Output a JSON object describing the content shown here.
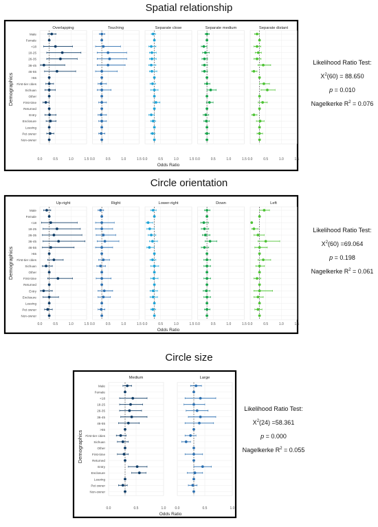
{
  "chart_data": [
    {
      "id": "spatial",
      "type": "scatter",
      "title": "Spatial relationship",
      "ylabel": "Demographics",
      "xlabel": "Odds Ratio",
      "xticks": [
        "0.0",
        "0.5",
        "1.0",
        "1.5"
      ],
      "xlim": [
        0,
        1.5
      ],
      "reference_line": 0.3,
      "categories": [
        "Male",
        "Female",
        "<18",
        "18-25",
        "26-35",
        "36-45",
        "46-55",
        ">55",
        "First-tier cities",
        "Sichuan",
        "Other",
        "First-time",
        "Returned",
        "Entry",
        "Enclosure",
        "Leaving",
        "Pet owner",
        "Non-owner"
      ],
      "stats": {
        "heading": "Likelihood Ratio Test:",
        "chi": "X",
        "chi_sup": "2",
        "chi_rest": "(60) = 88.650",
        "p_label": "p",
        "p_rest": " = 0.010",
        "r2_label": "Nagelkerke R",
        "r2_sup": "2",
        "r2_rest": " = 0.076"
      },
      "series": [
        {
          "name": "Overlapping",
          "color": "#0d3b66",
          "values": [
            0.38,
            0.3,
            0.5,
            0.72,
            0.66,
            0.13,
            0.55,
            0.3,
            0.3,
            0.3,
            0.3,
            0.19,
            0.3,
            0.31,
            0.34,
            0.3,
            0.33,
            0.3
          ],
          "lower": [
            0.26,
            0.3,
            0.12,
            0.22,
            0.22,
            0.02,
            0.15,
            0.3,
            0.19,
            0.16,
            0.3,
            0.1,
            0.3,
            0.16,
            0.2,
            0.3,
            0.22,
            0.3
          ],
          "upper": [
            0.52,
            0.3,
            1.05,
            1.32,
            1.2,
            0.8,
            1.15,
            0.3,
            0.44,
            0.5,
            0.3,
            0.3,
            0.3,
            0.52,
            0.52,
            0.3,
            0.45,
            0.3
          ]
        },
        {
          "name": "Touching",
          "color": "#2b6fb0",
          "values": [
            0.3,
            0.3,
            0.35,
            0.5,
            0.55,
            0.5,
            0.3,
            0.3,
            0.28,
            0.3,
            0.3,
            0.3,
            0.3,
            0.28,
            0.3,
            0.3,
            0.28,
            0.3
          ],
          "lower": [
            0.22,
            0.3,
            0.1,
            0.15,
            0.15,
            0.15,
            0.1,
            0.3,
            0.18,
            0.15,
            0.3,
            0.2,
            0.3,
            0.18,
            0.2,
            0.3,
            0.2,
            0.3
          ],
          "upper": [
            0.4,
            0.3,
            0.9,
            1.1,
            1.1,
            1.05,
            0.8,
            0.3,
            0.45,
            0.6,
            0.3,
            0.45,
            0.3,
            0.45,
            0.45,
            0.3,
            0.4,
            0.3
          ]
        },
        {
          "name": "Separate close",
          "color": "#1fa3d6",
          "values": [
            0.26,
            0.3,
            0.2,
            0.22,
            0.22,
            0.2,
            0.22,
            0.3,
            0.24,
            0.3,
            0.3,
            0.35,
            0.3,
            0.2,
            0.26,
            0.3,
            0.24,
            0.3
          ],
          "lower": [
            0.2,
            0.3,
            0.12,
            0.14,
            0.14,
            0.12,
            0.14,
            0.3,
            0.16,
            0.18,
            0.3,
            0.26,
            0.3,
            0.12,
            0.18,
            0.3,
            0.18,
            0.3
          ],
          "upper": [
            0.34,
            0.3,
            0.35,
            0.36,
            0.36,
            0.35,
            0.38,
            0.3,
            0.34,
            0.42,
            0.3,
            0.48,
            0.3,
            0.3,
            0.34,
            0.3,
            0.32,
            0.3
          ]
        },
        {
          "name": "Separate medium",
          "color": "#17a34a",
          "values": [
            0.3,
            0.3,
            0.2,
            0.25,
            0.22,
            0.22,
            0.22,
            0.3,
            0.3,
            0.42,
            0.3,
            0.38,
            0.3,
            0.26,
            0.28,
            0.3,
            0.3,
            0.3
          ],
          "lower": [
            0.24,
            0.3,
            0.12,
            0.16,
            0.14,
            0.14,
            0.14,
            0.3,
            0.22,
            0.3,
            0.3,
            0.28,
            0.3,
            0.18,
            0.2,
            0.3,
            0.24,
            0.3
          ],
          "upper": [
            0.38,
            0.3,
            0.3,
            0.38,
            0.32,
            0.32,
            0.32,
            0.3,
            0.4,
            0.6,
            0.3,
            0.5,
            0.3,
            0.36,
            0.38,
            0.3,
            0.38,
            0.3
          ]
        },
        {
          "name": "Separate distant",
          "color": "#4cc232",
          "values": [
            0.22,
            0.3,
            0.22,
            0.26,
            0.22,
            0.42,
            0.12,
            0.3,
            0.44,
            0.55,
            0.3,
            0.4,
            0.3,
            0.12,
            0.32,
            0.3,
            0.3,
            0.3
          ],
          "lower": [
            0.14,
            0.3,
            0.12,
            0.16,
            0.12,
            0.25,
            0.05,
            0.3,
            0.3,
            0.35,
            0.3,
            0.26,
            0.3,
            0.05,
            0.2,
            0.3,
            0.22,
            0.3
          ],
          "upper": [
            0.3,
            0.3,
            0.34,
            0.36,
            0.35,
            0.66,
            0.22,
            0.3,
            0.62,
            0.8,
            0.3,
            0.55,
            0.3,
            0.22,
            0.45,
            0.3,
            0.4,
            0.3
          ]
        }
      ]
    },
    {
      "id": "orientation",
      "type": "scatter",
      "title": "Circle orientation",
      "ylabel": "Demographics",
      "xlabel": "Odds Ratio",
      "xticks": [
        "0.0",
        "0.5",
        "1.0",
        "1.5"
      ],
      "xlim": [
        0,
        1.5
      ],
      "reference_line": 0.3,
      "categories": [
        "Male",
        "Female",
        "<18",
        "18-25",
        "26-35",
        "36-45",
        "46-55",
        ">55",
        "First-tier cities",
        "Sichuan",
        "Other",
        "First-time",
        "Returned",
        "Entry",
        "Enclosure",
        "Leaving",
        "Pet owner",
        "Non-owner"
      ],
      "stats": {
        "heading": "Likelihood Ratio Test:",
        "chi": "X",
        "chi_sup": "2",
        "chi_rest": "(60) =69.064",
        "p_label": "p",
        "p_rest": " = 0.198",
        "r2_label": "Nagelkerke R",
        "r2_sup": "2",
        "r2_rest": " = 0.061"
      },
      "series": [
        {
          "name": "Up-right",
          "color": "#0d3b66",
          "values": [
            0.22,
            0.3,
            0.35,
            0.55,
            0.45,
            0.6,
            0.35,
            0.3,
            0.45,
            0.2,
            0.3,
            0.58,
            0.3,
            0.12,
            0.3,
            0.3,
            0.25,
            0.3
          ],
          "lower": [
            0.12,
            0.3,
            0.05,
            0.1,
            0.08,
            0.1,
            0.08,
            0.3,
            0.25,
            0.08,
            0.3,
            0.25,
            0.3,
            0.02,
            0.1,
            0.3,
            0.15,
            0.3
          ],
          "upper": [
            0.35,
            0.3,
            1.2,
            1.3,
            1.35,
            1.45,
            1.1,
            0.3,
            0.75,
            0.4,
            0.3,
            1.05,
            0.3,
            0.4,
            0.6,
            0.3,
            0.4,
            0.3
          ]
        },
        {
          "name": "Right",
          "color": "#2b6fb0",
          "values": [
            0.26,
            0.3,
            0.3,
            0.3,
            0.35,
            0.4,
            0.3,
            0.3,
            0.35,
            0.26,
            0.3,
            0.3,
            0.3,
            0.38,
            0.35,
            0.3,
            0.28,
            0.3
          ],
          "lower": [
            0.18,
            0.3,
            0.1,
            0.1,
            0.12,
            0.15,
            0.1,
            0.3,
            0.2,
            0.14,
            0.3,
            0.12,
            0.3,
            0.18,
            0.18,
            0.3,
            0.18,
            0.3
          ],
          "upper": [
            0.36,
            0.3,
            0.7,
            0.65,
            0.75,
            0.85,
            0.65,
            0.3,
            0.55,
            0.42,
            0.3,
            0.6,
            0.3,
            0.65,
            0.58,
            0.3,
            0.4,
            0.3
          ]
        },
        {
          "name": "Lower-right",
          "color": "#1fa3d6",
          "values": [
            0.26,
            0.3,
            0.1,
            0.15,
            0.2,
            0.24,
            0.14,
            0.3,
            0.24,
            0.3,
            0.3,
            0.28,
            0.3,
            0.26,
            0.26,
            0.3,
            0.25,
            0.3
          ],
          "lower": [
            0.18,
            0.3,
            0.04,
            0.06,
            0.1,
            0.14,
            0.06,
            0.3,
            0.16,
            0.18,
            0.3,
            0.18,
            0.3,
            0.16,
            0.16,
            0.3,
            0.18,
            0.3
          ],
          "upper": [
            0.36,
            0.3,
            0.25,
            0.3,
            0.35,
            0.4,
            0.3,
            0.3,
            0.35,
            0.44,
            0.3,
            0.42,
            0.3,
            0.4,
            0.4,
            0.3,
            0.34,
            0.3
          ]
        },
        {
          "name": "Down",
          "color": "#17a34a",
          "values": [
            0.3,
            0.3,
            0.2,
            0.22,
            0.25,
            0.4,
            0.22,
            0.3,
            0.3,
            0.3,
            0.3,
            0.3,
            0.3,
            0.28,
            0.3,
            0.3,
            0.3,
            0.3
          ],
          "lower": [
            0.22,
            0.3,
            0.1,
            0.12,
            0.15,
            0.24,
            0.12,
            0.3,
            0.2,
            0.2,
            0.3,
            0.2,
            0.3,
            0.18,
            0.2,
            0.3,
            0.22,
            0.3
          ],
          "upper": [
            0.4,
            0.3,
            0.35,
            0.36,
            0.4,
            0.62,
            0.36,
            0.3,
            0.42,
            0.42,
            0.3,
            0.42,
            0.3,
            0.4,
            0.42,
            0.3,
            0.4,
            0.3
          ]
        },
        {
          "name": "Left",
          "color": "#4cc232",
          "values": [
            0.45,
            0.3,
            0.05,
            0.12,
            0.25,
            0.5,
            0.3,
            0.3,
            0.42,
            0.3,
            0.3,
            0.22,
            0.3,
            0.3,
            0.25,
            0.3,
            0.25,
            0.3
          ],
          "lower": [
            0.3,
            0.3,
            0.05,
            0.05,
            0.12,
            0.25,
            0.15,
            0.3,
            0.25,
            0.18,
            0.3,
            0.12,
            0.3,
            0.12,
            0.12,
            0.3,
            0.15,
            0.3
          ],
          "upper": [
            0.62,
            0.3,
            0.05,
            0.25,
            0.45,
            0.95,
            0.55,
            0.3,
            0.66,
            0.46,
            0.3,
            0.34,
            0.3,
            0.72,
            0.42,
            0.3,
            0.38,
            0.3
          ]
        }
      ]
    },
    {
      "id": "size",
      "type": "scatter",
      "title": "Circle size",
      "ylabel": "Demographics",
      "xlabel": "Odds Ratio",
      "xticks": [
        "0.0",
        "0.5",
        "1.0"
      ],
      "xlim": [
        0,
        1.0
      ],
      "reference_line": 0.3,
      "categories": [
        "Male",
        "Female",
        "<18",
        "18-25",
        "26-35",
        "36-45",
        "46-55",
        ">55",
        "First-tier cities",
        "Sichuan",
        "Other",
        "First-time",
        "Returned",
        "Entry",
        "Enclosure",
        "Leaving",
        "Pet owner",
        "Non-owner"
      ],
      "stats": {
        "heading": "Likelihood Ratio Test:",
        "chi": "X",
        "chi_sup": "2",
        "chi_rest": "(24) =58.361",
        "p_label": "p",
        "p_rest": " = 0.000",
        "r2_label": "Nagelkerke R",
        "r2_sup": "2",
        "r2_rest": " = 0.055"
      },
      "series": [
        {
          "name": "Medium",
          "color": "#0d3b66",
          "values": [
            0.34,
            0.3,
            0.44,
            0.4,
            0.38,
            0.42,
            0.36,
            0.3,
            0.22,
            0.26,
            0.3,
            0.28,
            0.3,
            0.52,
            0.56,
            0.3,
            0.26,
            0.3
          ],
          "lower": [
            0.26,
            0.3,
            0.2,
            0.2,
            0.2,
            0.22,
            0.18,
            0.3,
            0.14,
            0.16,
            0.3,
            0.16,
            0.3,
            0.36,
            0.42,
            0.3,
            0.18,
            0.3
          ],
          "upper": [
            0.42,
            0.3,
            0.7,
            0.62,
            0.6,
            0.7,
            0.56,
            0.3,
            0.32,
            0.36,
            0.3,
            0.36,
            0.3,
            0.7,
            0.68,
            0.3,
            0.34,
            0.3
          ]
        },
        {
          "name": "Large",
          "color": "#2b6fb0",
          "values": [
            0.34,
            0.3,
            0.42,
            0.3,
            0.36,
            0.42,
            0.4,
            0.3,
            0.24,
            0.16,
            0.3,
            0.3,
            0.3,
            0.46,
            0.32,
            0.3,
            0.28,
            0.3
          ],
          "lower": [
            0.24,
            0.3,
            0.14,
            0.12,
            0.16,
            0.2,
            0.14,
            0.3,
            0.14,
            0.08,
            0.3,
            0.14,
            0.3,
            0.3,
            0.18,
            0.3,
            0.2,
            0.3
          ],
          "upper": [
            0.44,
            0.3,
            0.7,
            0.5,
            0.56,
            0.7,
            0.66,
            0.3,
            0.34,
            0.24,
            0.3,
            0.46,
            0.3,
            0.62,
            0.46,
            0.3,
            0.36,
            0.3
          ]
        }
      ]
    }
  ]
}
